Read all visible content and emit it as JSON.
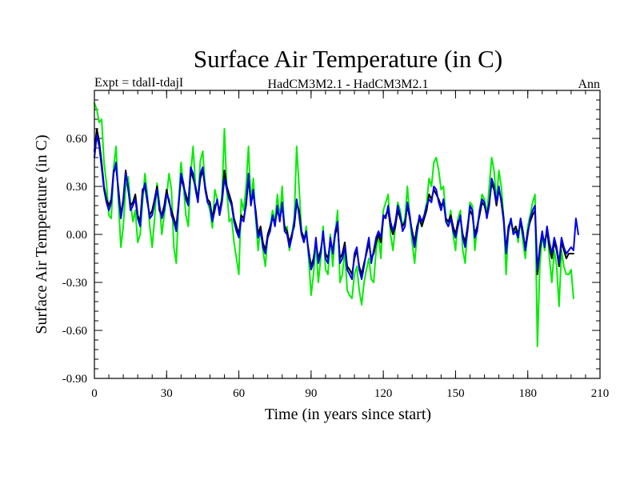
{
  "chart_data": {
    "type": "line",
    "title": "Surface Air Temperature (in C)",
    "left_label": "Expt = tdalI-tdajI",
    "center_label": "HadCM3M2.1 - HadCM3M2.1",
    "right_label": "Ann",
    "xlabel": "Time (in years since start)",
    "ylabel": "Surface Air Temperature (in C)",
    "xlim": [
      0,
      210
    ],
    "ylim": [
      -0.9,
      0.9
    ],
    "xticks": [
      0,
      30,
      60,
      90,
      120,
      150,
      180,
      210
    ],
    "xtick_labels": [
      "0",
      "30",
      "60",
      "90",
      "120",
      "150",
      "180",
      "210"
    ],
    "yticks": [
      -0.9,
      -0.6,
      -0.3,
      0.0,
      0.3,
      0.6
    ],
    "ytick_labels": [
      "-0.90",
      "-0.60",
      "-0.30",
      "0.00",
      "0.30",
      "0.60"
    ],
    "grid": false,
    "series": [
      {
        "name": "green",
        "color": "#00ee00",
        "x_start": 0,
        "x_step": 1,
        "values": [
          0.82,
          0.78,
          0.7,
          0.72,
          0.45,
          0.32,
          0.12,
          0.1,
          0.42,
          0.55,
          0.2,
          -0.08,
          0.05,
          0.3,
          0.36,
          0.2,
          0.08,
          0.15,
          -0.05,
          0.0,
          0.2,
          0.38,
          0.25,
          0.05,
          -0.08,
          0.1,
          0.32,
          0.2,
          0.0,
          0.12,
          0.24,
          0.38,
          0.28,
          -0.08,
          -0.18,
          0.2,
          0.45,
          0.3,
          0.12,
          0.05,
          0.38,
          0.55,
          0.3,
          0.22,
          0.46,
          0.52,
          0.3,
          0.2,
          0.15,
          0.04,
          0.28,
          0.22,
          0.12,
          0.25,
          0.66,
          0.28,
          0.08,
          0.1,
          -0.05,
          -0.15,
          -0.25,
          0.22,
          0.15,
          0.3,
          0.55,
          0.2,
          0.35,
          0.1,
          -0.1,
          0.05,
          -0.1,
          -0.2,
          0.0,
          0.05,
          0.15,
          0.08,
          0.25,
          0.1,
          0.3,
          0.02,
          0.05,
          -0.1,
          0.0,
          0.1,
          0.55,
          0.3,
          0.02,
          -0.05,
          0.05,
          -0.15,
          -0.38,
          -0.25,
          -0.05,
          -0.3,
          -0.15,
          0.05,
          -0.22,
          -0.25,
          0.0,
          -0.2,
          0.0,
          0.15,
          -0.3,
          -0.25,
          -0.1,
          -0.35,
          -0.38,
          -0.4,
          -0.25,
          -0.2,
          -0.35,
          -0.44,
          -0.3,
          -0.22,
          -0.15,
          -0.28,
          -0.3,
          -0.1,
          0.0,
          -0.15,
          0.15,
          0.2,
          0.25,
          0.0,
          -0.1,
          0.05,
          0.2,
          0.15,
          0.05,
          0.1,
          0.3,
          0.1,
          -0.05,
          -0.18,
          0.0,
          0.1,
          0.05,
          0.12,
          0.2,
          0.35,
          0.3,
          0.45,
          0.48,
          0.4,
          0.28,
          0.3,
          0.1,
          0.05,
          0.15,
          0.0,
          -0.1,
          0.1,
          0.15,
          -0.1,
          -0.18,
          0.05,
          0.2,
          0.18,
          -0.1,
          0.05,
          0.15,
          0.25,
          0.22,
          0.12,
          0.3,
          0.48,
          0.4,
          0.2,
          0.4,
          0.3,
          0.1,
          -0.25,
          0.05,
          0.1,
          0.0,
          0.05,
          -0.05,
          0.1,
          -0.05,
          -0.15,
          0.05,
          0.12,
          0.2,
          0.25,
          -0.7,
          -0.2,
          0.0,
          -0.1,
          0.05,
          -0.15,
          -0.3,
          -0.1,
          -0.2,
          -0.45,
          -0.1,
          -0.2,
          -0.25,
          -0.25,
          -0.22,
          -0.4
        ]
      },
      {
        "name": "black",
        "color": "#000000",
        "x_start": 0,
        "x_step": 1,
        "values": [
          0.52,
          0.66,
          0.58,
          0.45,
          0.3,
          0.22,
          0.18,
          0.22,
          0.4,
          0.42,
          0.28,
          0.12,
          0.22,
          0.4,
          0.28,
          0.18,
          0.2,
          0.25,
          0.12,
          0.08,
          0.28,
          0.3,
          0.2,
          0.12,
          0.15,
          0.22,
          0.3,
          0.15,
          0.12,
          0.18,
          0.28,
          0.2,
          0.15,
          0.1,
          0.05,
          0.2,
          0.35,
          0.3,
          0.25,
          0.2,
          0.4,
          0.35,
          0.3,
          0.22,
          0.35,
          0.4,
          0.3,
          0.22,
          0.2,
          0.1,
          0.18,
          0.2,
          0.15,
          0.22,
          0.4,
          0.3,
          0.25,
          0.2,
          0.1,
          0.05,
          0.0,
          0.12,
          0.1,
          0.18,
          0.35,
          0.2,
          0.25,
          0.15,
          0.0,
          0.05,
          -0.05,
          -0.1,
          0.0,
          0.05,
          0.1,
          0.08,
          0.15,
          0.1,
          0.18,
          0.05,
          0.02,
          -0.05,
          0.0,
          0.05,
          0.2,
          0.15,
          0.02,
          -0.02,
          0.0,
          -0.1,
          -0.2,
          -0.15,
          -0.05,
          -0.15,
          -0.1,
          0.0,
          -0.12,
          -0.15,
          -0.05,
          -0.1,
          0.0,
          0.05,
          -0.15,
          -0.12,
          -0.05,
          -0.2,
          -0.22,
          -0.25,
          -0.15,
          -0.1,
          -0.2,
          -0.25,
          -0.18,
          -0.12,
          -0.05,
          -0.15,
          -0.12,
          -0.05,
          0.0,
          -0.05,
          0.1,
          0.12,
          0.15,
          0.05,
          0.0,
          0.05,
          0.15,
          0.1,
          0.05,
          0.08,
          0.18,
          0.1,
          0.02,
          -0.05,
          0.05,
          0.1,
          0.05,
          0.1,
          0.15,
          0.25,
          0.22,
          0.28,
          0.25,
          0.22,
          0.18,
          0.2,
          0.1,
          0.08,
          0.12,
          0.05,
          0.0,
          0.08,
          0.1,
          0.0,
          -0.05,
          0.05,
          0.15,
          0.12,
          0.0,
          0.05,
          0.12,
          0.2,
          0.18,
          0.12,
          0.2,
          0.32,
          0.28,
          0.18,
          0.28,
          0.22,
          0.1,
          -0.1,
          0.05,
          0.08,
          0.02,
          0.05,
          0.0,
          0.08,
          0.0,
          -0.08,
          0.02,
          0.08,
          0.12,
          0.15,
          -0.25,
          -0.1,
          0.0,
          -0.05,
          0.02,
          -0.08,
          -0.15,
          -0.05,
          -0.1,
          -0.2,
          -0.05,
          -0.1,
          -0.15,
          -0.12,
          -0.12,
          -0.12
        ]
      },
      {
        "name": "blue",
        "color": "#0000ee",
        "x_start": 0,
        "x_step": 1,
        "values": [
          0.48,
          0.62,
          0.55,
          0.42,
          0.28,
          0.2,
          0.15,
          0.2,
          0.38,
          0.45,
          0.25,
          0.1,
          0.2,
          0.38,
          0.3,
          0.15,
          0.18,
          0.22,
          0.1,
          0.05,
          0.25,
          0.32,
          0.22,
          0.1,
          0.12,
          0.2,
          0.28,
          0.18,
          0.1,
          0.15,
          0.25,
          0.22,
          0.12,
          0.08,
          0.02,
          0.18,
          0.38,
          0.32,
          0.22,
          0.18,
          0.42,
          0.38,
          0.28,
          0.2,
          0.38,
          0.42,
          0.28,
          0.2,
          0.18,
          0.08,
          0.15,
          0.22,
          0.12,
          0.2,
          0.35,
          0.28,
          0.22,
          0.18,
          0.08,
          0.02,
          -0.02,
          0.1,
          0.08,
          0.2,
          0.38,
          0.18,
          0.28,
          0.12,
          -0.02,
          0.02,
          -0.08,
          -0.12,
          -0.02,
          0.02,
          0.12,
          0.05,
          0.18,
          0.08,
          0.2,
          0.02,
          0.0,
          -0.08,
          -0.02,
          0.08,
          0.22,
          0.12,
          0.0,
          -0.05,
          0.02,
          -0.12,
          -0.22,
          -0.18,
          -0.02,
          -0.18,
          -0.12,
          0.02,
          -0.15,
          -0.18,
          -0.02,
          -0.12,
          0.02,
          0.08,
          -0.18,
          -0.15,
          -0.08,
          -0.22,
          -0.25,
          -0.28,
          -0.12,
          -0.08,
          -0.22,
          -0.28,
          -0.2,
          -0.1,
          -0.02,
          -0.18,
          -0.1,
          -0.02,
          0.02,
          -0.02,
          0.12,
          0.1,
          0.18,
          0.08,
          0.02,
          0.08,
          0.18,
          0.12,
          0.02,
          0.05,
          0.2,
          0.12,
          0.0,
          -0.08,
          0.02,
          0.12,
          0.08,
          0.12,
          0.18,
          0.22,
          0.2,
          0.3,
          0.28,
          0.2,
          0.15,
          0.22,
          0.08,
          0.05,
          0.1,
          0.02,
          -0.02,
          0.05,
          0.12,
          -0.02,
          -0.08,
          0.02,
          0.18,
          0.15,
          -0.02,
          0.02,
          0.15,
          0.22,
          0.2,
          0.1,
          0.18,
          0.35,
          0.3,
          0.2,
          0.3,
          0.2,
          0.08,
          -0.12,
          0.02,
          0.1,
          0.0,
          0.02,
          -0.02,
          0.1,
          0.02,
          -0.1,
          0.0,
          0.1,
          0.15,
          0.18,
          -0.22,
          -0.08,
          0.02,
          -0.08,
          0.05,
          -0.05,
          -0.12,
          -0.02,
          -0.08,
          -0.18,
          -0.02,
          -0.08,
          -0.12,
          -0.1,
          -0.08,
          -0.1,
          0.1,
          0.0
        ]
      }
    ]
  }
}
